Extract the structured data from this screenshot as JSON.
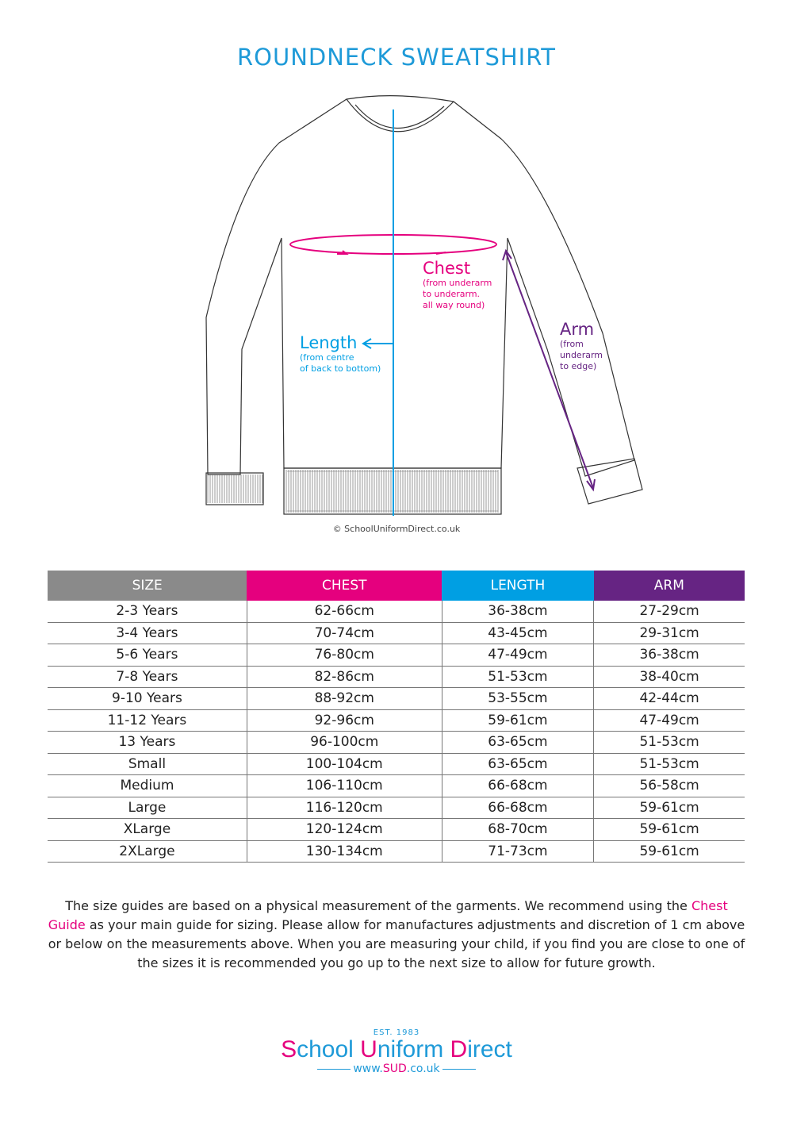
{
  "title": "ROUNDNECK SWEATSHIRT",
  "annotations": {
    "chest": {
      "label": "Chest",
      "lines": [
        "(from underarm",
        "to underarm.",
        "all way round)"
      ]
    },
    "length": {
      "label": "Length",
      "lines": [
        "(from centre",
        "of back to bottom)"
      ]
    },
    "arm": {
      "label": "Arm",
      "lines": [
        "(from",
        "underarm",
        "to edge)"
      ]
    }
  },
  "copyright": "© SchoolUniformDirect.co.uk",
  "colors": {
    "size": "#8a8a8a",
    "chest": "#e5007e",
    "length": "#009fe3",
    "arm": "#662483",
    "title": "#1e9ad8"
  },
  "table": {
    "headers": [
      "SIZE",
      "CHEST",
      "LENGTH",
      "ARM"
    ],
    "rows": [
      [
        "2-3 Years",
        "62-66cm",
        "36-38cm",
        "27-29cm"
      ],
      [
        "3-4 Years",
        "70-74cm",
        "43-45cm",
        "29-31cm"
      ],
      [
        "5-6  Years",
        "76-80cm",
        "47-49cm",
        "36-38cm"
      ],
      [
        "7-8 Years",
        "82-86cm",
        "51-53cm",
        "38-40cm"
      ],
      [
        "9-10 Years",
        "88-92cm",
        "53-55cm",
        "42-44cm"
      ],
      [
        "11-12 Years",
        "92-96cm",
        "59-61cm",
        "47-49cm"
      ],
      [
        "13 Years",
        "96-100cm",
        "63-65cm",
        "51-53cm"
      ],
      [
        "Small",
        "100-104cm",
        "63-65cm",
        "51-53cm"
      ],
      [
        "Medium",
        "106-110cm",
        "66-68cm",
        "56-58cm"
      ],
      [
        "Large",
        "116-120cm",
        "66-68cm",
        "59-61cm"
      ],
      [
        "XLarge",
        "120-124cm",
        "68-70cm",
        "59-61cm"
      ],
      [
        "2XLarge",
        "130-134cm",
        "71-73cm",
        "59-61cm"
      ]
    ]
  },
  "paragraph": {
    "before": "The size guides are based on a physical measurement of the garments. We recommend using the ",
    "highlight": "Chest Guide",
    "after": " as your main guide for sizing. Please allow for manufactures adjustments and discretion of  1 cm above or below on the measurements above. When you are measuring your child, if you find you are close to one of the sizes it is recommended you go up to the next size to allow for future growth."
  },
  "logo": {
    "est": "EST. 1983",
    "name": "School Uniform Direct",
    "url": "www.SUD.co.uk"
  }
}
